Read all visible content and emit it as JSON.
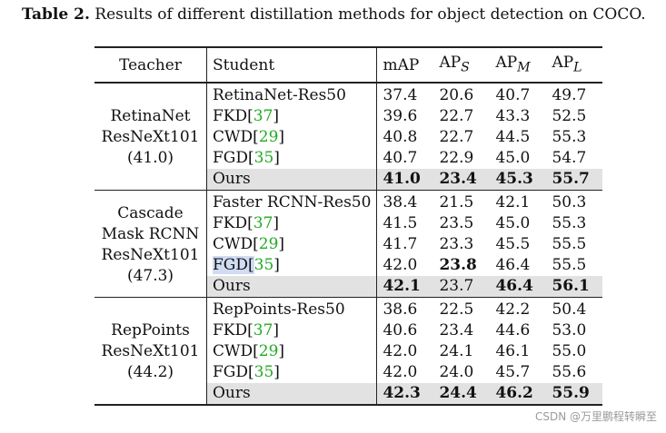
{
  "caption": {
    "label": "Table 2.",
    "text": " Results of different distillation methods for object detection on COCO."
  },
  "headers": {
    "teacher": "Teacher",
    "student": "Student",
    "map": "mAP",
    "aps": "AP",
    "aps_sub": "S",
    "apm": "AP",
    "apm_sub": "M",
    "apl": "AP",
    "apl_sub": "L"
  },
  "groups": [
    {
      "teacher": [
        "RetinaNet",
        "ResNeXt101",
        "(41.0)"
      ],
      "rows": [
        {
          "student": "RetinaNet-Res50",
          "cite": "",
          "map": "37.4",
          "aps": "20.6",
          "apm": "40.7",
          "apl": "49.7"
        },
        {
          "student": "FKD",
          "cite": "37",
          "map": "39.6",
          "aps": "22.7",
          "apm": "43.3",
          "apl": "52.5"
        },
        {
          "student": "CWD",
          "cite": "29",
          "map": "40.8",
          "aps": "22.7",
          "apm": "44.5",
          "apl": "55.3"
        },
        {
          "student": "FGD",
          "cite": "35",
          "map": "40.7",
          "aps": "22.9",
          "apm": "45.0",
          "apl": "54.7"
        },
        {
          "student": "Ours",
          "cite": "",
          "map": "41.0",
          "aps": "23.4",
          "apm": "45.3",
          "apl": "55.7"
        }
      ]
    },
    {
      "teacher": [
        "Cascade",
        "Mask RCNN",
        "ResNeXt101",
        "(47.3)"
      ],
      "rows": [
        {
          "student": "Faster RCNN-Res50",
          "cite": "",
          "map": "38.4",
          "aps": "21.5",
          "apm": "42.1",
          "apl": "50.3"
        },
        {
          "student": "FKD",
          "cite": "37",
          "map": "41.5",
          "aps": "23.5",
          "apm": "45.0",
          "apl": "55.3"
        },
        {
          "student": "CWD",
          "cite": "29",
          "map": "41.7",
          "aps": "23.3",
          "apm": "45.5",
          "apl": "55.5"
        },
        {
          "student": "FGD",
          "cite": "35",
          "map": "42.0",
          "aps": "23.8",
          "apm": "46.4",
          "apl": "55.5"
        },
        {
          "student": "Ours",
          "cite": "",
          "map": "42.1",
          "aps": "23.7",
          "apm": "46.4",
          "apl": "56.1"
        }
      ]
    },
    {
      "teacher": [
        "RepPoints",
        "ResNeXt101",
        "(44.2)"
      ],
      "rows": [
        {
          "student": "RepPoints-Res50",
          "cite": "",
          "map": "38.6",
          "aps": "22.5",
          "apm": "42.2",
          "apl": "50.4"
        },
        {
          "student": "FKD",
          "cite": "37",
          "map": "40.6",
          "aps": "23.4",
          "apm": "44.6",
          "apl": "53.0"
        },
        {
          "student": "CWD",
          "cite": "29",
          "map": "42.0",
          "aps": "24.1",
          "apm": "46.1",
          "apl": "55.0"
        },
        {
          "student": "FGD",
          "cite": "35",
          "map": "42.0",
          "aps": "24.0",
          "apm": "45.7",
          "apl": "55.6"
        },
        {
          "student": "Ours",
          "cite": "",
          "map": "42.3",
          "aps": "24.4",
          "apm": "46.2",
          "apl": "55.9"
        }
      ]
    }
  ],
  "watermark": "CSDN @万里鹏程转瞬至"
}
